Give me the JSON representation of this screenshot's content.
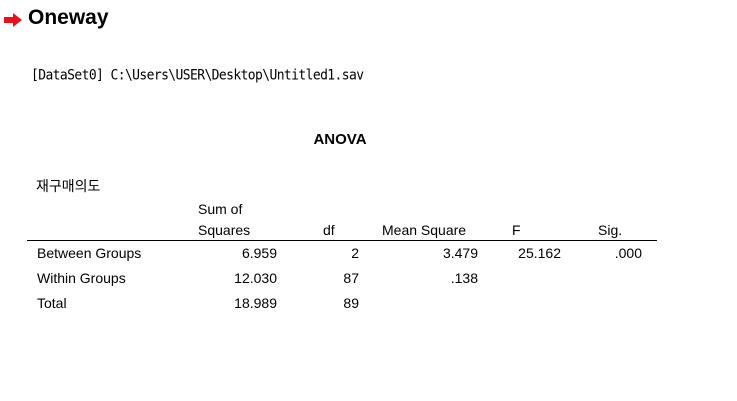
{
  "header": {
    "title": "Oneway",
    "arrow_icon": "red-arrow-right-icon",
    "arrow_color": "#e8101a"
  },
  "dataset_path": "[DataSet0] C:\\Users\\USER\\Desktop\\Untitled1.sav",
  "table": {
    "title": "ANOVA",
    "dependent_variable": "재구매의도",
    "headers": {
      "ss_line1": "Sum of",
      "ss_line2": "Squares",
      "df": "df",
      "ms": "Mean Square",
      "f": "F",
      "sig": "Sig."
    },
    "rows": [
      {
        "label": "Between Groups",
        "ss": "6.959",
        "df": "2",
        "ms": "3.479",
        "f": "25.162",
        "sig": ".000"
      },
      {
        "label": "Within Groups",
        "ss": "12.030",
        "df": "87",
        "ms": ".138",
        "f": "",
        "sig": ""
      },
      {
        "label": "Total",
        "ss": "18.989",
        "df": "89",
        "ms": "",
        "f": "",
        "sig": ""
      }
    ]
  }
}
